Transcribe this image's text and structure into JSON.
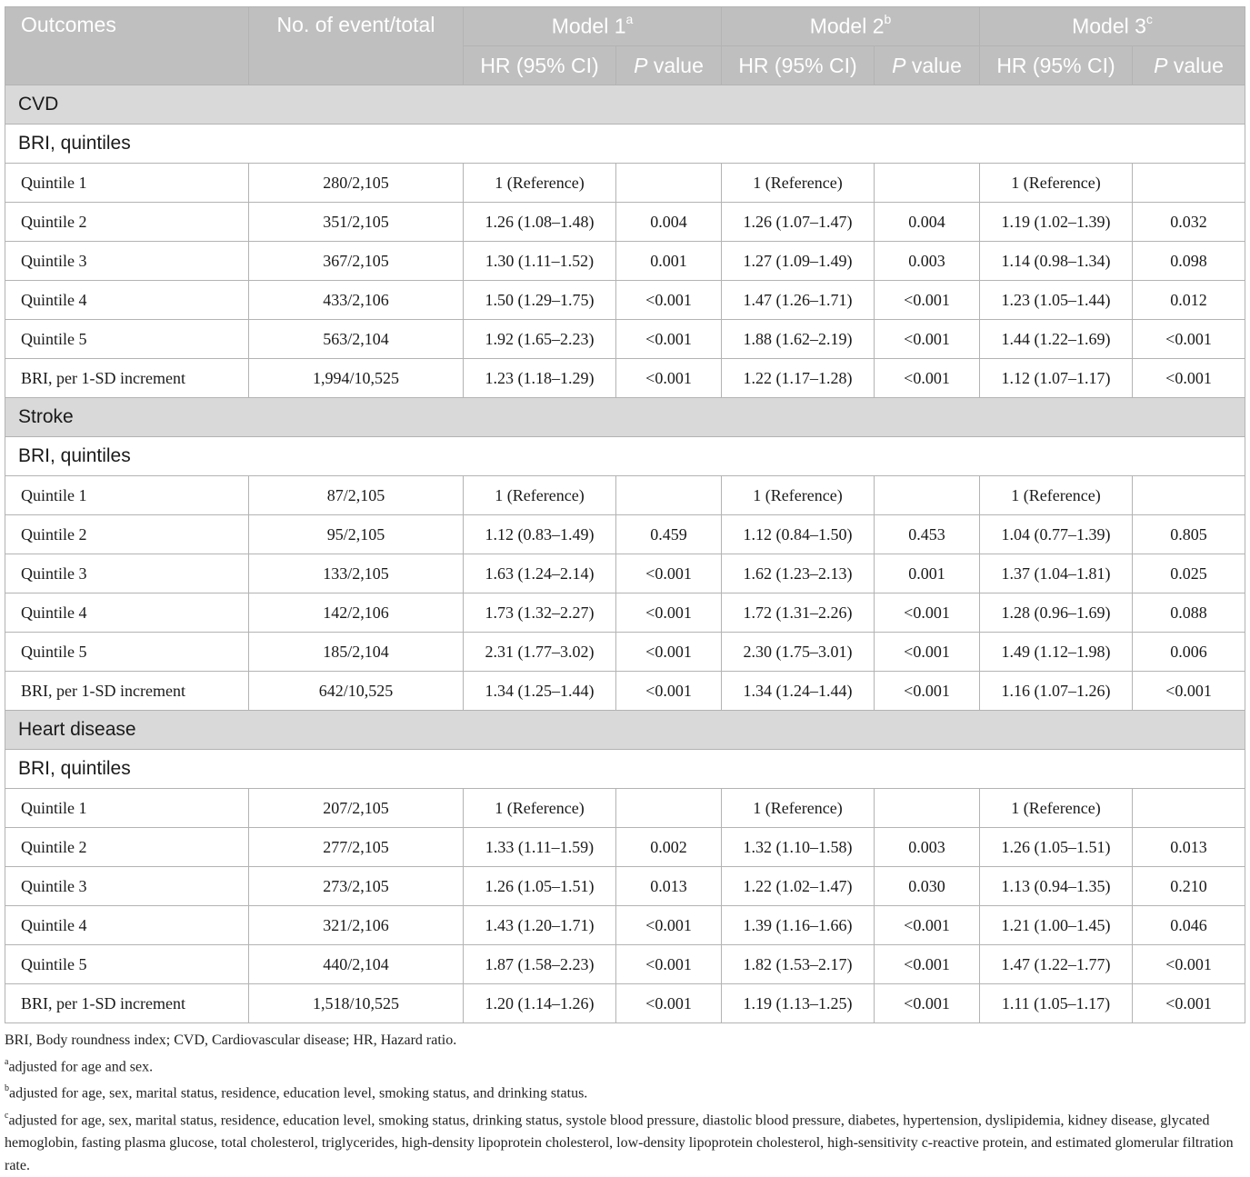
{
  "header": {
    "outcomes": "Outcomes",
    "events": "No. of event/total",
    "models": [
      {
        "label": "Model 1",
        "sup": "a"
      },
      {
        "label": "Model 2",
        "sup": "b"
      },
      {
        "label": "Model 3",
        "sup": "c"
      }
    ],
    "hr": "HR (95% CI)",
    "p_italic": "P",
    "p_rest": " value"
  },
  "sections": [
    {
      "title": "CVD",
      "subtitle": "BRI, quintiles",
      "rows": [
        {
          "label": "Quintile 1",
          "events": "280/2,105",
          "cells": [
            "1 (Reference)",
            "",
            "1 (Reference)",
            "",
            "1 (Reference)",
            ""
          ]
        },
        {
          "label": "Quintile 2",
          "events": "351/2,105",
          "cells": [
            "1.26 (1.08–1.48)",
            "0.004",
            "1.26 (1.07–1.47)",
            "0.004",
            "1.19 (1.02–1.39)",
            "0.032"
          ]
        },
        {
          "label": "Quintile 3",
          "events": "367/2,105",
          "cells": [
            "1.30 (1.11–1.52)",
            "0.001",
            "1.27 (1.09–1.49)",
            "0.003",
            "1.14 (0.98–1.34)",
            "0.098"
          ]
        },
        {
          "label": "Quintile 4",
          "events": "433/2,106",
          "cells": [
            "1.50 (1.29–1.75)",
            "<0.001",
            "1.47 (1.26–1.71)",
            "<0.001",
            "1.23 (1.05–1.44)",
            "0.012"
          ]
        },
        {
          "label": "Quintile 5",
          "events": "563/2,104",
          "cells": [
            "1.92 (1.65–2.23)",
            "<0.001",
            "1.88 (1.62–2.19)",
            "<0.001",
            "1.44 (1.22–1.69)",
            "<0.001"
          ]
        },
        {
          "label": "BRI, per 1-SD increment",
          "events": "1,994/10,525",
          "cells": [
            "1.23 (1.18–1.29)",
            "<0.001",
            "1.22 (1.17–1.28)",
            "<0.001",
            "1.12 (1.07–1.17)",
            "<0.001"
          ]
        }
      ]
    },
    {
      "title": "Stroke",
      "subtitle": "BRI, quintiles",
      "rows": [
        {
          "label": "Quintile 1",
          "events": "87/2,105",
          "cells": [
            "1 (Reference)",
            "",
            "1 (Reference)",
            "",
            "1 (Reference)",
            ""
          ]
        },
        {
          "label": "Quintile 2",
          "events": "95/2,105",
          "cells": [
            "1.12 (0.83–1.49)",
            "0.459",
            "1.12 (0.84–1.50)",
            "0.453",
            "1.04 (0.77–1.39)",
            "0.805"
          ]
        },
        {
          "label": "Quintile 3",
          "events": "133/2,105",
          "cells": [
            "1.63 (1.24–2.14)",
            "<0.001",
            "1.62 (1.23–2.13)",
            "0.001",
            "1.37 (1.04–1.81)",
            "0.025"
          ]
        },
        {
          "label": "Quintile 4",
          "events": "142/2,106",
          "cells": [
            "1.73 (1.32–2.27)",
            "<0.001",
            "1.72 (1.31–2.26)",
            "<0.001",
            "1.28 (0.96–1.69)",
            "0.088"
          ]
        },
        {
          "label": "Quintile 5",
          "events": "185/2,104",
          "cells": [
            "2.31 (1.77–3.02)",
            "<0.001",
            "2.30 (1.75–3.01)",
            "<0.001",
            "1.49 (1.12–1.98)",
            "0.006"
          ]
        },
        {
          "label": "BRI, per 1-SD increment",
          "events": "642/10,525",
          "cells": [
            "1.34 (1.25–1.44)",
            "<0.001",
            "1.34 (1.24–1.44)",
            "<0.001",
            "1.16 (1.07–1.26)",
            "<0.001"
          ]
        }
      ]
    },
    {
      "title": "Heart disease",
      "subtitle": "BRI, quintiles",
      "rows": [
        {
          "label": "Quintile 1",
          "events": "207/2,105",
          "cells": [
            "1 (Reference)",
            "",
            "1 (Reference)",
            "",
            "1 (Reference)",
            ""
          ]
        },
        {
          "label": "Quintile 2",
          "events": "277/2,105",
          "cells": [
            "1.33 (1.11–1.59)",
            "0.002",
            "1.32 (1.10–1.58)",
            "0.003",
            "1.26 (1.05–1.51)",
            "0.013"
          ]
        },
        {
          "label": "Quintile 3",
          "events": "273/2,105",
          "cells": [
            "1.26 (1.05–1.51)",
            "0.013",
            "1.22 (1.02–1.47)",
            "0.030",
            "1.13 (0.94–1.35)",
            "0.210"
          ]
        },
        {
          "label": "Quintile 4",
          "events": "321/2,106",
          "cells": [
            "1.43 (1.20–1.71)",
            "<0.001",
            "1.39 (1.16–1.66)",
            "<0.001",
            "1.21 (1.00–1.45)",
            "0.046"
          ]
        },
        {
          "label": "Quintile 5",
          "events": "440/2,104",
          "cells": [
            "1.87 (1.58–2.23)",
            "<0.001",
            "1.82 (1.53–2.17)",
            "<0.001",
            "1.47 (1.22–1.77)",
            "<0.001"
          ]
        },
        {
          "label": "BRI, per 1-SD increment",
          "events": "1,518/10,525",
          "cells": [
            "1.20 (1.14–1.26)",
            "<0.001",
            "1.19 (1.13–1.25)",
            "<0.001",
            "1.11 (1.05–1.17)",
            "<0.001"
          ]
        }
      ]
    }
  ],
  "footnotes": {
    "abbrev": "BRI, Body roundness index; CVD, Cardiovascular disease; HR, Hazard ratio.",
    "notes": [
      {
        "sup": "a",
        "text": "adjusted for age and sex."
      },
      {
        "sup": "b",
        "text": "adjusted for age, sex, marital status, residence, education level, smoking status, and drinking status."
      },
      {
        "sup": "c",
        "text": "adjusted for age, sex, marital status, residence, education level, smoking status, drinking status, systole blood pressure, diastolic blood pressure, diabetes, hypertension, dyslipidemia, kidney disease, glycated hemoglobin, fasting plasma glucose, total cholesterol, triglycerides, high-density lipoprotein cholesterol, low-density lipoprotein cholesterol, high-sensitivity c-reactive protein, and estimated glomerular filtration rate."
      }
    ]
  },
  "colors": {
    "header_bg": "#bfbfbf",
    "section_bg": "#d9d9d9",
    "border": "#b3b3b3"
  }
}
